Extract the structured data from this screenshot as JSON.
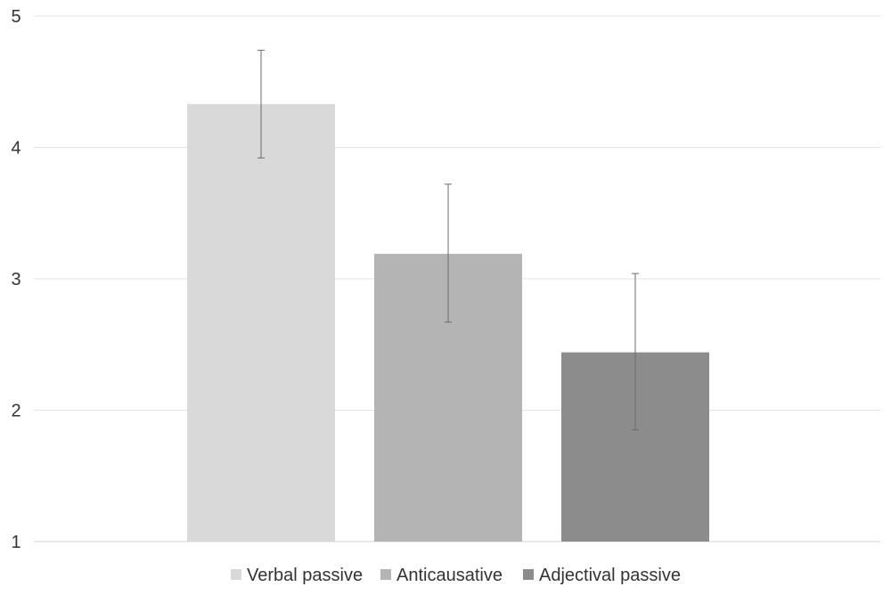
{
  "chart_data": {
    "type": "bar",
    "categories": [
      "Verbal passive",
      "Anticausative",
      "Adjectival passive"
    ],
    "values": [
      4.33,
      3.19,
      2.44
    ],
    "error_low": [
      3.92,
      2.67,
      1.85
    ],
    "error_high": [
      4.74,
      3.72,
      3.04
    ],
    "colors": [
      "#d9d9d9",
      "#b4b4b4",
      "#8c8c8c"
    ],
    "ylim": [
      1,
      5
    ],
    "yticks": [
      "1",
      "2",
      "3",
      "4",
      "5"
    ],
    "grid": true,
    "legend_position": "bottom",
    "title": "",
    "xlabel": "",
    "ylabel": ""
  }
}
